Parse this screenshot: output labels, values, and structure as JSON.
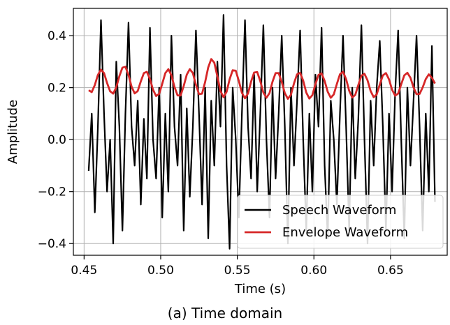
{
  "caption": "(a) Time domain",
  "chart_data": {
    "type": "line",
    "xlabel": "Time (s)",
    "ylabel": "Amplitude",
    "xlim": [
      0.443,
      0.687
    ],
    "ylim": [
      -0.445,
      0.505
    ],
    "grid": true,
    "legend_position": "bottom-right",
    "x_ticks": [
      0.45,
      0.5,
      0.55,
      0.6,
      0.65
    ],
    "x_tick_labels": [
      "0.45",
      "0.50",
      "0.55",
      "0.60",
      "0.65"
    ],
    "y_ticks": [
      -0.4,
      -0.2,
      0.0,
      0.2,
      0.4
    ],
    "y_tick_labels": [
      "−0.4",
      "−0.2",
      "0.0",
      "0.2",
      "0.4"
    ],
    "series": [
      {
        "name": "Speech Waveform",
        "color": "#000000",
        "x": [
          0.453,
          0.455,
          0.457,
          0.459,
          0.461,
          0.463,
          0.465,
          0.467,
          0.469,
          0.471,
          0.473,
          0.475,
          0.477,
          0.479,
          0.481,
          0.483,
          0.485,
          0.487,
          0.489,
          0.491,
          0.493,
          0.495,
          0.497,
          0.499,
          0.501,
          0.503,
          0.505,
          0.507,
          0.509,
          0.511,
          0.513,
          0.515,
          0.517,
          0.519,
          0.521,
          0.523,
          0.525,
          0.527,
          0.529,
          0.531,
          0.533,
          0.535,
          0.537,
          0.539,
          0.541,
          0.543,
          0.545,
          0.547,
          0.549,
          0.551,
          0.553,
          0.555,
          0.557,
          0.559,
          0.561,
          0.563,
          0.565,
          0.567,
          0.569,
          0.571,
          0.573,
          0.575,
          0.577,
          0.579,
          0.581,
          0.583,
          0.585,
          0.587,
          0.589,
          0.591,
          0.593,
          0.595,
          0.597,
          0.599,
          0.601,
          0.603,
          0.605,
          0.607,
          0.609,
          0.611,
          0.613,
          0.615,
          0.617,
          0.619,
          0.621,
          0.623,
          0.625,
          0.627,
          0.629,
          0.631,
          0.633,
          0.635,
          0.637,
          0.639,
          0.641,
          0.643,
          0.645,
          0.647,
          0.649,
          0.651,
          0.653,
          0.655,
          0.657,
          0.659,
          0.661,
          0.663,
          0.665,
          0.667,
          0.669,
          0.671,
          0.673,
          0.675,
          0.677,
          0.679
        ],
        "y": [
          -0.12,
          0.1,
          -0.28,
          0.05,
          0.46,
          0.1,
          -0.2,
          0.0,
          -0.4,
          0.3,
          0.05,
          -0.35,
          0.1,
          0.45,
          0.05,
          -0.1,
          0.15,
          -0.25,
          0.08,
          -0.15,
          0.43,
          0.0,
          -0.15,
          0.2,
          -0.3,
          0.1,
          -0.2,
          0.4,
          0.05,
          -0.1,
          0.25,
          -0.35,
          0.12,
          -0.22,
          0.05,
          0.42,
          0.1,
          -0.25,
          0.2,
          -0.38,
          0.15,
          -0.1,
          0.3,
          0.05,
          0.48,
          -0.1,
          -0.42,
          0.2,
          0.0,
          -0.3,
          0.1,
          0.46,
          0.05,
          -0.15,
          0.25,
          -0.2,
          0.1,
          0.44,
          0.0,
          -0.3,
          0.2,
          -0.15,
          0.1,
          0.4,
          0.05,
          -0.4,
          0.2,
          -0.1,
          0.15,
          0.42,
          0.0,
          -0.35,
          0.1,
          -0.2,
          0.25,
          0.05,
          0.43,
          -0.1,
          -0.38,
          0.15,
          0.0,
          -0.25,
          0.1,
          0.4,
          0.05,
          -0.35,
          0.2,
          -0.15,
          0.08,
          0.44,
          0.0,
          -0.4,
          0.15,
          -0.1,
          0.2,
          0.38,
          0.05,
          -0.35,
          0.1,
          -0.2,
          0.18,
          0.42,
          0.0,
          -0.38,
          0.2,
          -0.1,
          0.15,
          0.4,
          0.05,
          -0.35,
          0.1,
          -0.2,
          0.36,
          -0.24
        ]
      },
      {
        "name": "Envelope Waveform",
        "color": "#d62728",
        "x": [
          0.453,
          0.455,
          0.457,
          0.459,
          0.461,
          0.463,
          0.465,
          0.467,
          0.469,
          0.471,
          0.473,
          0.475,
          0.477,
          0.479,
          0.481,
          0.483,
          0.485,
          0.487,
          0.489,
          0.491,
          0.493,
          0.495,
          0.497,
          0.499,
          0.501,
          0.503,
          0.505,
          0.507,
          0.509,
          0.511,
          0.513,
          0.515,
          0.517,
          0.519,
          0.521,
          0.523,
          0.525,
          0.527,
          0.529,
          0.531,
          0.533,
          0.535,
          0.537,
          0.539,
          0.541,
          0.543,
          0.545,
          0.547,
          0.549,
          0.551,
          0.553,
          0.555,
          0.557,
          0.559,
          0.561,
          0.563,
          0.565,
          0.567,
          0.569,
          0.571,
          0.573,
          0.575,
          0.577,
          0.579,
          0.581,
          0.583,
          0.585,
          0.587,
          0.589,
          0.591,
          0.593,
          0.595,
          0.597,
          0.599,
          0.601,
          0.603,
          0.605,
          0.607,
          0.609,
          0.611,
          0.613,
          0.615,
          0.617,
          0.619,
          0.621,
          0.623,
          0.625,
          0.627,
          0.629,
          0.631,
          0.633,
          0.635,
          0.637,
          0.639,
          0.641,
          0.643,
          0.645,
          0.647,
          0.649,
          0.651,
          0.653,
          0.655,
          0.657,
          0.659,
          0.661,
          0.663,
          0.665,
          0.667,
          0.669,
          0.671,
          0.673,
          0.675,
          0.677,
          0.679
        ],
        "y": [
          0.19,
          0.183,
          0.21,
          0.249,
          0.269,
          0.256,
          0.218,
          0.186,
          0.177,
          0.201,
          0.244,
          0.277,
          0.28,
          0.249,
          0.204,
          0.178,
          0.187,
          0.224,
          0.256,
          0.261,
          0.233,
          0.192,
          0.168,
          0.176,
          0.215,
          0.256,
          0.271,
          0.248,
          0.203,
          0.17,
          0.17,
          0.206,
          0.25,
          0.271,
          0.256,
          0.211,
          0.175,
          0.177,
          0.222,
          0.278,
          0.31,
          0.296,
          0.243,
          0.187,
          0.163,
          0.184,
          0.232,
          0.267,
          0.265,
          0.226,
          0.18,
          0.159,
          0.178,
          0.223,
          0.258,
          0.26,
          0.225,
          0.181,
          0.161,
          0.179,
          0.223,
          0.256,
          0.256,
          0.222,
          0.179,
          0.157,
          0.173,
          0.216,
          0.251,
          0.257,
          0.227,
          0.181,
          0.158,
          0.171,
          0.213,
          0.249,
          0.255,
          0.226,
          0.184,
          0.161,
          0.174,
          0.214,
          0.251,
          0.261,
          0.233,
          0.188,
          0.162,
          0.172,
          0.21,
          0.246,
          0.253,
          0.228,
          0.187,
          0.163,
          0.174,
          0.212,
          0.247,
          0.256,
          0.232,
          0.192,
          0.169,
          0.177,
          0.213,
          0.247,
          0.257,
          0.238,
          0.201,
          0.175,
          0.176,
          0.201,
          0.233,
          0.251,
          0.238,
          0.216
        ]
      }
    ]
  }
}
